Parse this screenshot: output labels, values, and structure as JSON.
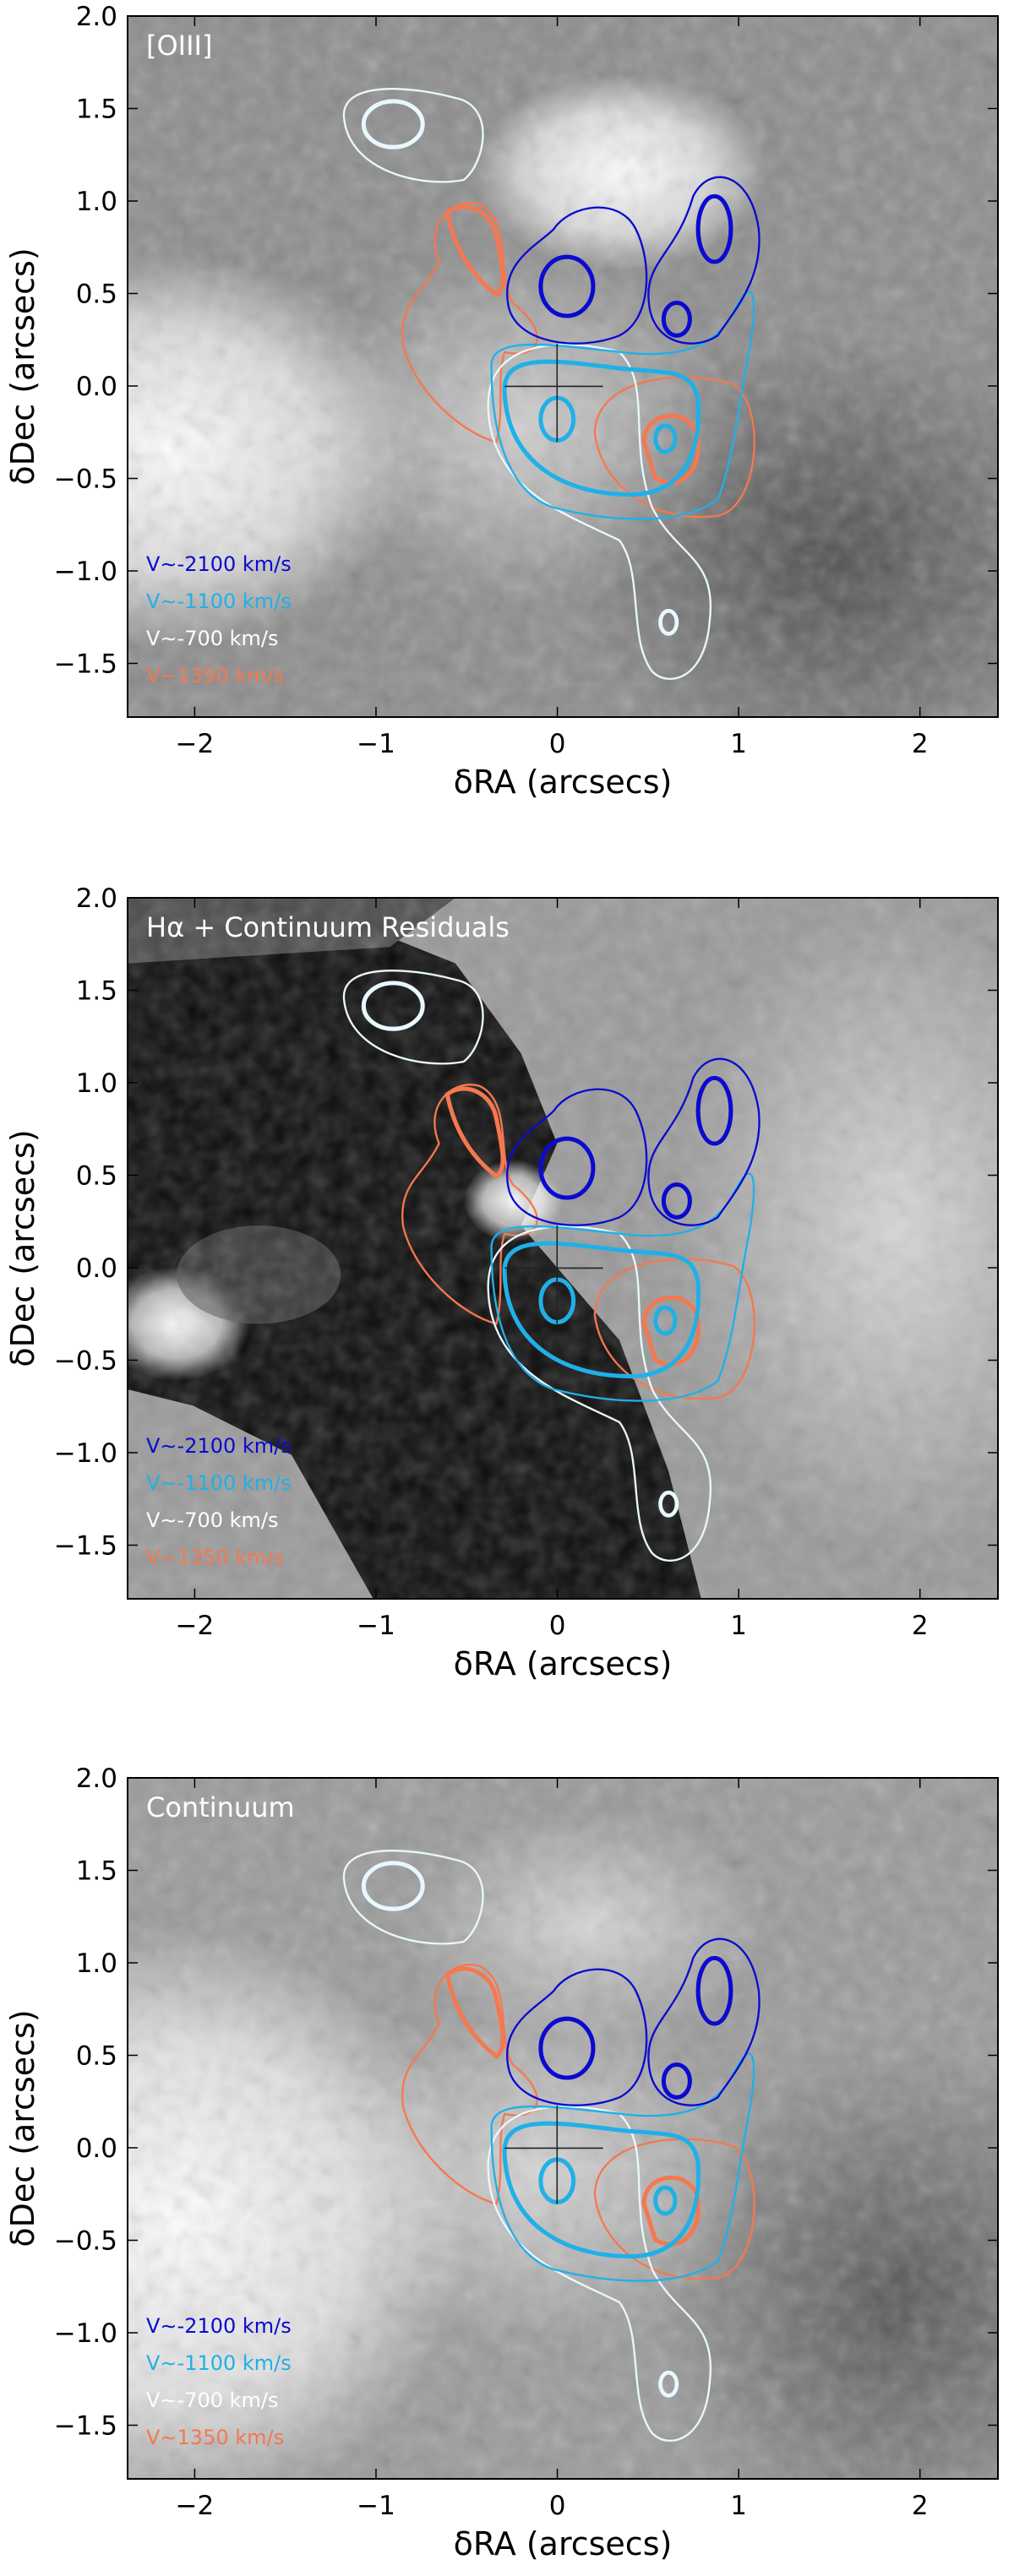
{
  "chart_data": [
    {
      "type": "image",
      "title": "[OIII]",
      "xlabel": "δRA (arcsecs)",
      "ylabel": "δDec (arcsecs)",
      "xlim": [
        -2.37,
        2.43
      ],
      "ylim": [
        -1.79,
        2.0
      ],
      "xticks": [
        {
          "value": -2,
          "label": "−2"
        },
        {
          "value": -1,
          "label": "−1"
        },
        0,
        1,
        2
      ],
      "yticks": [
        {
          "value": -1.5,
          "label": "−1.5"
        },
        {
          "value": -1.0,
          "label": "−1.0"
        },
        {
          "value": -0.5,
          "label": "−0.5"
        },
        {
          "value": 0,
          "label": "0.0"
        },
        {
          "value": 0.5,
          "label": "0.5"
        },
        {
          "value": 1.0,
          "label": "1.0"
        },
        {
          "value": 1.5,
          "label": "1.5"
        },
        {
          "value": 2.0,
          "label": "2.0"
        }
      ],
      "series": [
        {
          "name": "V∼-2100 km/s",
          "color": "#0a0ad0"
        },
        {
          "name": "V∼-1100 km/s",
          "color": "#20b0e8"
        },
        {
          "name": "V∼-700 km/s",
          "color": "#ffffff"
        },
        {
          "name": "V∼1350 km/s",
          "color": "#f47850"
        }
      ]
    },
    {
      "type": "image",
      "title": "Hα + Continuum Residuals",
      "xlabel": "δRA (arcsecs)",
      "ylabel": "δDec (arcsecs)",
      "xlim": [
        -2.37,
        2.43
      ],
      "ylim": [
        -1.79,
        2.0
      ],
      "xticks": [
        {
          "value": -2,
          "label": "−2"
        },
        {
          "value": -1,
          "label": "−1"
        },
        0,
        1,
        2
      ],
      "yticks": [
        {
          "value": -1.5,
          "label": "−1.5"
        },
        {
          "value": -1.0,
          "label": "−1.0"
        },
        {
          "value": -0.5,
          "label": "−0.5"
        },
        {
          "value": 0,
          "label": "0.0"
        },
        {
          "value": 0.5,
          "label": "0.5"
        },
        {
          "value": 1.0,
          "label": "1.0"
        },
        {
          "value": 1.5,
          "label": "1.5"
        },
        {
          "value": 2.0,
          "label": "2.0"
        }
      ],
      "series": [
        {
          "name": "V∼-2100 km/s",
          "color": "#0a0ad0"
        },
        {
          "name": "V∼-1100 km/s",
          "color": "#20b0e8"
        },
        {
          "name": "V∼-700 km/s",
          "color": "#ffffff"
        },
        {
          "name": "V∼1350 km/s",
          "color": "#f47850"
        }
      ]
    },
    {
      "type": "image",
      "title": "Continuum",
      "xlabel": "δRA (arcsecs)",
      "ylabel": "δDec (arcsecs)",
      "xlim": [
        -2.37,
        2.43
      ],
      "ylim": [
        -1.79,
        2.0
      ],
      "xticks": [
        {
          "value": -2,
          "label": "−2"
        },
        {
          "value": -1,
          "label": "−1"
        },
        0,
        1,
        2
      ],
      "yticks": [
        {
          "value": -1.5,
          "label": "−1.5"
        },
        {
          "value": -1.0,
          "label": "−1.0"
        },
        {
          "value": -0.5,
          "label": "−0.5"
        },
        {
          "value": 0,
          "label": "0.0"
        },
        {
          "value": 0.5,
          "label": "0.5"
        },
        {
          "value": 1.0,
          "label": "1.0"
        },
        {
          "value": 1.5,
          "label": "1.5"
        },
        {
          "value": 2.0,
          "label": "2.0"
        }
      ],
      "series": [
        {
          "name": "V∼-2100 km/s",
          "color": "#0a0ad0"
        },
        {
          "name": "V∼-1100 km/s",
          "color": "#20b0e8"
        },
        {
          "name": "V∼-700 km/s",
          "color": "#ffffff"
        },
        {
          "name": "V∼1350 km/s",
          "color": "#f47850"
        }
      ]
    }
  ]
}
